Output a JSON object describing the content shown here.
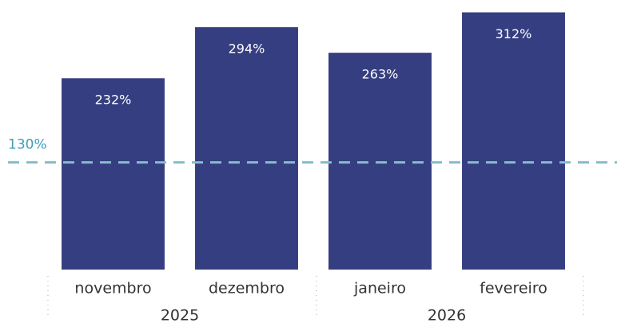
{
  "chart_data": {
    "type": "bar",
    "categories": [
      "novembro",
      "dezembro",
      "janeiro",
      "fevereiro"
    ],
    "category_groups": [
      "2025",
      "2025",
      "2026",
      "2026"
    ],
    "values": [
      232,
      294,
      263,
      312
    ],
    "value_labels": [
      "232%",
      "294%",
      "263%",
      "312%"
    ],
    "color": "#353e80",
    "ylim": [
      0,
      327
    ],
    "reference_line": {
      "value": 130,
      "label": "130%",
      "color": "#86bccb",
      "label_color": "#3d9dba"
    }
  }
}
